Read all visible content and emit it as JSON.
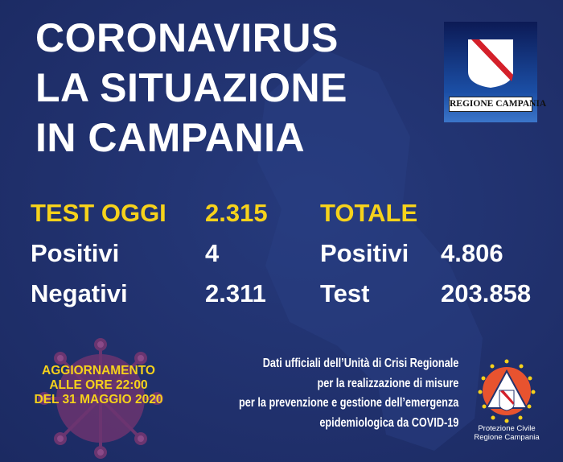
{
  "title": {
    "line1": "CORONAVIRUS",
    "line2": "LA SITUAZIONE",
    "line3": "IN CAMPANIA"
  },
  "logo": {
    "text": "REGIONE CAMPANIA"
  },
  "today": {
    "heading": "TEST OGGI",
    "tests": "2.315",
    "positive_label": "Positivi",
    "positive": "4",
    "negative_label": "Negativi",
    "negative": "2.311"
  },
  "total": {
    "heading": "TOTALE",
    "positive_label": "Positivi",
    "positive": "4.806",
    "test_label": "Test",
    "test": "203.858"
  },
  "update": {
    "line1": "AGGIORNAMENTO",
    "line2": "ALLE ORE 22:00",
    "line3": "DEL 31 MAGGIO 2020"
  },
  "info": {
    "line1": "Dati ufficiali dell’Unità di Crisi Regionale",
    "line2": "per la realizzazione di misure",
    "line3": "per la prevenzione e gestione dell’emergenza",
    "line4": "epidemiologica da COVID-19"
  },
  "protezione_civile": {
    "line1": "Protezione Civile",
    "line2": "Regione Campania"
  },
  "colors": {
    "background": "#20306c",
    "accent": "#f6d21b",
    "virus": "#7a3b78",
    "pc_orange": "#e8532f"
  }
}
